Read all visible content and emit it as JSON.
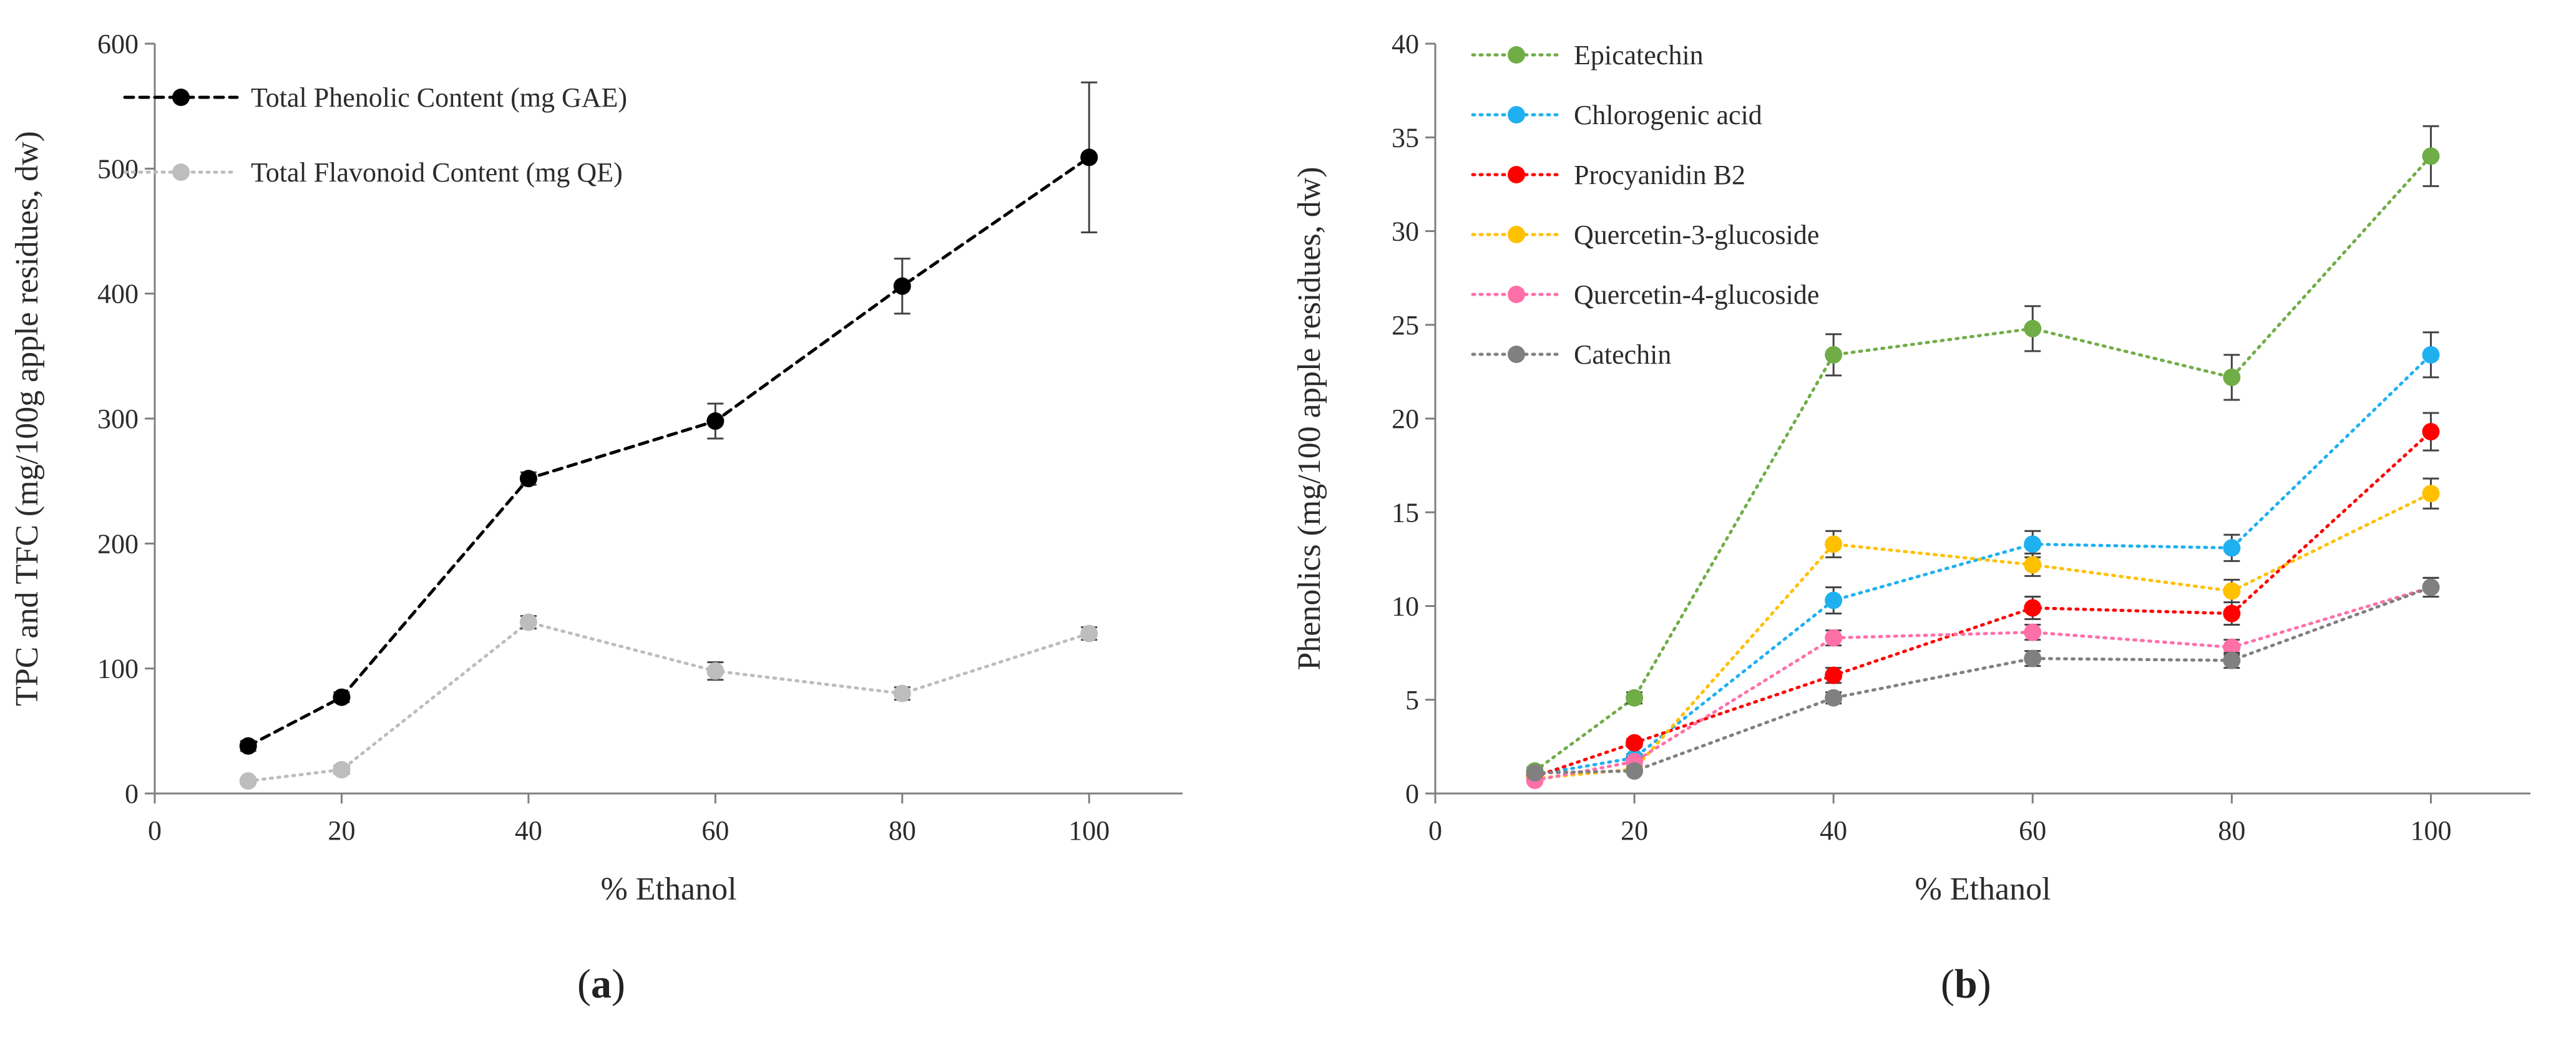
{
  "chart_data": [
    {
      "type": "line",
      "panel_label": "a",
      "title": "",
      "xlabel": "% Ethanol",
      "ylabel": "TPC and TFC (mg/100g apple residues, dw)",
      "xlim": [
        0,
        110
      ],
      "ylim": [
        0,
        600
      ],
      "xticks": [
        0,
        20,
        40,
        60,
        80,
        100
      ],
      "yticks": [
        0,
        100,
        200,
        300,
        400,
        500,
        600
      ],
      "grid": false,
      "legend_position": "top-left",
      "series": [
        {
          "name": "Total Phenolic Content (mg GAE)",
          "color": "#000000",
          "line_style": "dashed",
          "marker": "circle",
          "x": [
            10,
            20,
            40,
            60,
            80,
            100
          ],
          "values": [
            38,
            77,
            252,
            298,
            406,
            509
          ],
          "errors": [
            4,
            4,
            5,
            14,
            22,
            60
          ]
        },
        {
          "name": "Total Flavonoid Content (mg QE)",
          "color": "#bdbdbd",
          "line_style": "dotted",
          "marker": "circle",
          "x": [
            10,
            20,
            40,
            60,
            80,
            100
          ],
          "values": [
            10,
            19,
            137,
            98,
            80,
            128
          ],
          "errors": [
            2,
            3,
            5,
            7,
            5,
            5
          ]
        }
      ]
    },
    {
      "type": "line",
      "panel_label": "b",
      "title": "",
      "xlabel": "% Ethanol",
      "ylabel": "Phenolics (mg/100 apple residues, dw)",
      "xlim": [
        0,
        110
      ],
      "ylim": [
        0,
        40
      ],
      "xticks": [
        0,
        20,
        40,
        60,
        80,
        100
      ],
      "yticks": [
        0,
        5,
        10,
        15,
        20,
        25,
        30,
        35,
        40
      ],
      "grid": false,
      "legend_position": "top-left",
      "series": [
        {
          "name": "Epicatechin",
          "color": "#70ad47",
          "line_style": "dotted",
          "marker": "circle",
          "x": [
            10,
            20,
            40,
            60,
            80,
            100
          ],
          "values": [
            1.2,
            5.1,
            23.4,
            24.8,
            22.2,
            34.0
          ],
          "errors": [
            0.2,
            0.3,
            1.1,
            1.2,
            1.2,
            1.6
          ]
        },
        {
          "name": "Chlorogenic acid",
          "color": "#1fb0f0",
          "line_style": "dotted",
          "marker": "circle",
          "x": [
            10,
            20,
            40,
            60,
            80,
            100
          ],
          "values": [
            1.0,
            1.9,
            10.3,
            13.3,
            13.1,
            23.4
          ],
          "errors": [
            0.2,
            0.2,
            0.7,
            0.7,
            0.7,
            1.2
          ]
        },
        {
          "name": "Procyanidin B2",
          "color": "#ff0000",
          "line_style": "dotted",
          "marker": "circle",
          "x": [
            10,
            20,
            40,
            60,
            80,
            100
          ],
          "values": [
            0.9,
            2.7,
            6.3,
            9.9,
            9.6,
            19.3
          ],
          "errors": [
            0.2,
            0.2,
            0.4,
            0.6,
            0.6,
            1.0
          ]
        },
        {
          "name": "Quercetin-3-glucoside",
          "color": "#ffc000",
          "line_style": "dotted",
          "marker": "circle",
          "x": [
            10,
            20,
            40,
            60,
            80,
            100
          ],
          "values": [
            0.8,
            1.3,
            13.3,
            12.2,
            10.8,
            16.0
          ],
          "errors": [
            0.2,
            0.2,
            0.7,
            0.6,
            0.6,
            0.8
          ]
        },
        {
          "name": "Quercetin-4-glucoside",
          "color": "#ff6fa8",
          "line_style": "dotted",
          "marker": "circle",
          "x": [
            10,
            20,
            40,
            60,
            80,
            100
          ],
          "values": [
            0.7,
            1.7,
            8.3,
            8.6,
            7.8,
            11.0
          ],
          "errors": [
            0.1,
            0.2,
            0.4,
            0.4,
            0.4,
            0.5
          ]
        },
        {
          "name": "Catechin",
          "color": "#808080",
          "line_style": "dotted",
          "marker": "circle",
          "x": [
            10,
            20,
            40,
            60,
            80,
            100
          ],
          "values": [
            1.1,
            1.2,
            5.1,
            7.2,
            7.1,
            11.0
          ],
          "errors": [
            0.1,
            0.1,
            0.3,
            0.4,
            0.4,
            0.5
          ]
        }
      ]
    }
  ],
  "captions": {
    "a": "a",
    "b": "b"
  }
}
